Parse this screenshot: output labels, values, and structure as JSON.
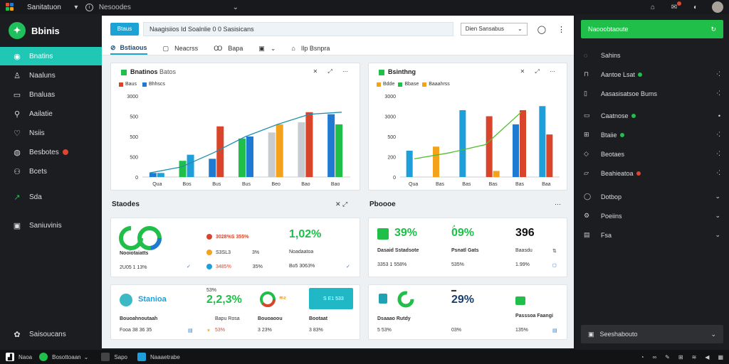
{
  "topbar": {
    "title": "Sanitatuon",
    "search_label": "Nesoodes",
    "icons": [
      "notification-icon",
      "mail-icon",
      "settings-icon",
      "avatar"
    ]
  },
  "sidebar": {
    "brand": "Bbinis",
    "items": [
      {
        "label": "Bnatins",
        "icon": "home-icon",
        "active": true
      },
      {
        "label": "Naaluns",
        "icon": "user-icon"
      },
      {
        "label": "Bnaluas",
        "icon": "folder-icon"
      },
      {
        "label": "Aailatie",
        "icon": "search-icon"
      },
      {
        "label": "Nsiis",
        "icon": "heart-icon"
      },
      {
        "label": "Besbotes",
        "icon": "alert-icon",
        "badge": true
      },
      {
        "label": "Bcets",
        "icon": "users-icon"
      },
      {
        "label": "Sda",
        "icon": "chart-icon"
      },
      {
        "label": "Saniuvinis",
        "icon": "inbox-icon"
      }
    ],
    "footer": "Saisoucans"
  },
  "header": {
    "pill": "Btaus",
    "search_text": "Naagisiios Id Soalnlie 0 0 Sasisicans",
    "select_value": "Dien Sansabus",
    "tabs": [
      {
        "label": "Bstiaous",
        "icon": "compass-icon",
        "active": true
      },
      {
        "label": "Neacrss",
        "icon": "edit-icon"
      },
      {
        "label": "Bapa",
        "icon": "pen-icon"
      },
      {
        "label": "",
        "icon": "calendar-icon"
      },
      {
        "label": "Ilp   Bsnpra",
        "icon": "lock-icon"
      }
    ]
  },
  "charts": {
    "left": {
      "title": "Bnatinos",
      "subtitle": "Batos",
      "ctrl": "✕  ⤢  ⋯"
    },
    "right": {
      "title": "Bsinthng",
      "ctrl": "✕  ⤢  ⋯"
    }
  },
  "chart_data": [
    {
      "type": "bar",
      "title": "Bnatinos",
      "legend": [
        "Baus",
        "Bhhscs"
      ],
      "categories": [
        "Qua",
        "Bos",
        "Bus",
        "Bus",
        "Beo",
        "Bao",
        "Bao"
      ],
      "ytick_labels": [
        "3000",
        "500",
        "500",
        "500",
        "0"
      ],
      "ylim": [
        0,
        4
      ],
      "series": [
        {
          "name": "Baus",
          "values": [
            0.2,
            0.8,
            0.9,
            1.9,
            2.2,
            2.7,
            3.1
          ]
        },
        {
          "name": "Bhhscs",
          "values": [
            0.2,
            1.1,
            2.5,
            2.0,
            2.6,
            3.2,
            2.6
          ]
        }
      ],
      "trend": [
        0.2,
        0.5,
        1.2,
        2.0,
        2.6,
        3.1,
        3.2
      ]
    },
    {
      "type": "bar",
      "title": "Bsinthng",
      "legend": [
        "Bdde",
        "Bbase",
        "Baaahrss"
      ],
      "categories": [
        "Qua",
        "Bas",
        "Bas",
        "Bas",
        "Bas",
        "Baa"
      ],
      "ytick_labels": [
        "3000",
        "3000",
        "500",
        "200",
        "0"
      ],
      "ylim": [
        0,
        4
      ],
      "series": [
        {
          "name": "Bdde",
          "values": [
            1.3,
            1.5,
            3.3,
            3.0,
            2.6,
            3.5
          ]
        },
        {
          "name": "Bbase",
          "values": [
            0.0,
            0.0,
            0.0,
            0.3,
            3.3,
            2.1
          ]
        }
      ],
      "trend": [
        0.9,
        1.2,
        1.6,
        3.2
      ]
    }
  ],
  "sections": {
    "left_title": "Staodes",
    "right_title": "Pboooe"
  },
  "cards": {
    "c1": {
      "label": "Nooiotaiatts",
      "footer": "2U05 1 13%",
      "rows": [
        {
          "dot": "#d9452b",
          "text": "3028%S 355%"
        },
        {
          "dot": "#f4a11c",
          "text": "S3SL3",
          "pct": "3%"
        },
        {
          "dot": "#1f9fd9",
          "text": "3485%",
          "pct": "35%"
        }
      ]
    },
    "c2": {
      "value": "1,02%",
      "label": "Noadaatoa",
      "sub": "Bo5 3063%"
    },
    "c3": {
      "value": "39%",
      "label": "Dasaid Sstadsote",
      "sub": "3353 1 558%"
    },
    "c4": {
      "value": "09%",
      "label": "Psnatl Gats",
      "sub": "535%"
    },
    "c5": {
      "value": "396",
      "label": "Baasdu",
      "sub": "1.99%"
    },
    "c6": {
      "label": "Stanioa",
      "value": "2,2,3%",
      "footer_label": "Bouoahnoutaah",
      "footer_val": "Fooa 38 36 35",
      "pct1": "53%"
    },
    "c7": {
      "label": "Bapu Rosa",
      "value": "53%"
    },
    "c8": {
      "label": "Bouoaoou",
      "value": "3 23%"
    },
    "c9": {
      "tag": "S E1 533",
      "label": "Bootaat",
      "value": "3 83%"
    },
    "c10": {
      "label": "Dsaaao Rutdy",
      "value": "5 53%"
    },
    "c11": {
      "value": "29%",
      "label": "",
      "sub": "03%"
    },
    "c12": {
      "label": "Passsoa Faangi",
      "value": "135%"
    }
  },
  "right_sidebar": {
    "header": "Naooobtaoute",
    "items": [
      {
        "label": "Sahins",
        "icon": "chat-icon",
        "trail": ""
      },
      {
        "label": "Aantoe Lsat",
        "icon": "bag-icon",
        "trail": "⋅⁚",
        "dot": true
      },
      {
        "label": "Aasasisatsoe Bums",
        "icon": "doc-icon",
        "trail": "⋅⁚"
      },
      {
        "label": "Caatnose",
        "icon": "mail-icon",
        "trail": "•",
        "dot": true
      },
      {
        "label": "Btaiie",
        "icon": "grid-icon",
        "trail": "⋅⁚",
        "dot": true
      },
      {
        "label": "Beotaes",
        "icon": "shield-icon",
        "trail": "⋅⁚"
      },
      {
        "label": "Beahieatoa",
        "icon": "layers-icon",
        "trail": "⋅⁚",
        "red": true
      },
      {
        "label": "Dotbop",
        "icon": "globe-icon",
        "trail": "⌄"
      },
      {
        "label": "Poeiins",
        "icon": "gear-icon",
        "trail": "⌄"
      },
      {
        "label": "Fsa",
        "icon": "list-icon",
        "trail": "⌄"
      }
    ],
    "footer": "Seeshabouto"
  },
  "statusbar": {
    "items": [
      "Naoa",
      "Bosottoaan",
      "Sapo",
      "Naaaetrabe"
    ]
  },
  "colors": {
    "green": "#1fbf4a",
    "teal": "#20c7b4",
    "blue": "#1f7bd1",
    "orange": "#f4a11c",
    "red": "#d9452b",
    "gray": "#c8ccd0"
  }
}
